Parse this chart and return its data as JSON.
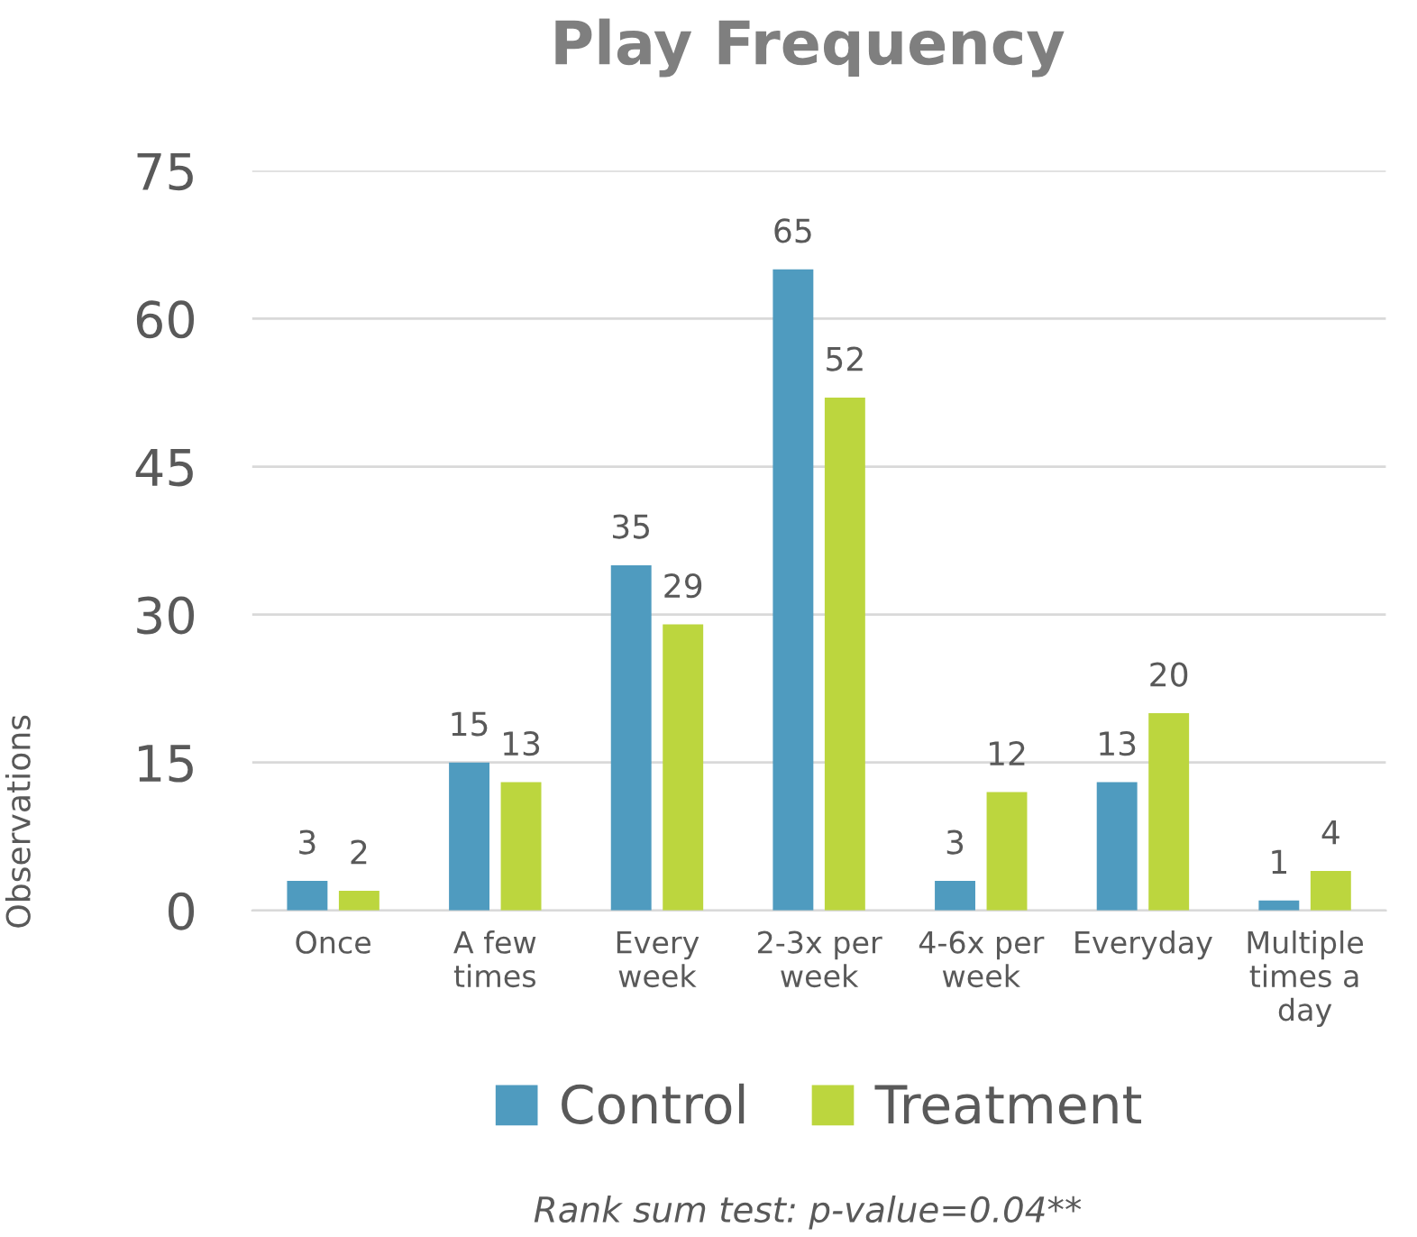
{
  "chart_data": {
    "type": "bar",
    "title": "Play Frequency",
    "ylabel": "Observations",
    "categories": [
      "Once",
      "A few\ntimes",
      "Every\nweek",
      "2-3x per\nweek",
      "4-6x per\nweek",
      "Everyday",
      "Multiple\ntimes a\nday"
    ],
    "series": [
      {
        "name": "Control",
        "color": "#4f9bbf",
        "values": [
          3,
          15,
          35,
          65,
          3,
          13,
          1
        ]
      },
      {
        "name": "Treatment",
        "color": "#bcd63e",
        "values": [
          2,
          13,
          29,
          52,
          12,
          20,
          4
        ]
      }
    ],
    "ylim": [
      0,
      75
    ],
    "yticks": [
      0,
      15,
      30,
      45,
      60,
      75
    ],
    "grid": "y",
    "legend": "bottom",
    "data_labels": true,
    "annotations": [
      "Rank sum test: p-value=0.04**"
    ]
  }
}
